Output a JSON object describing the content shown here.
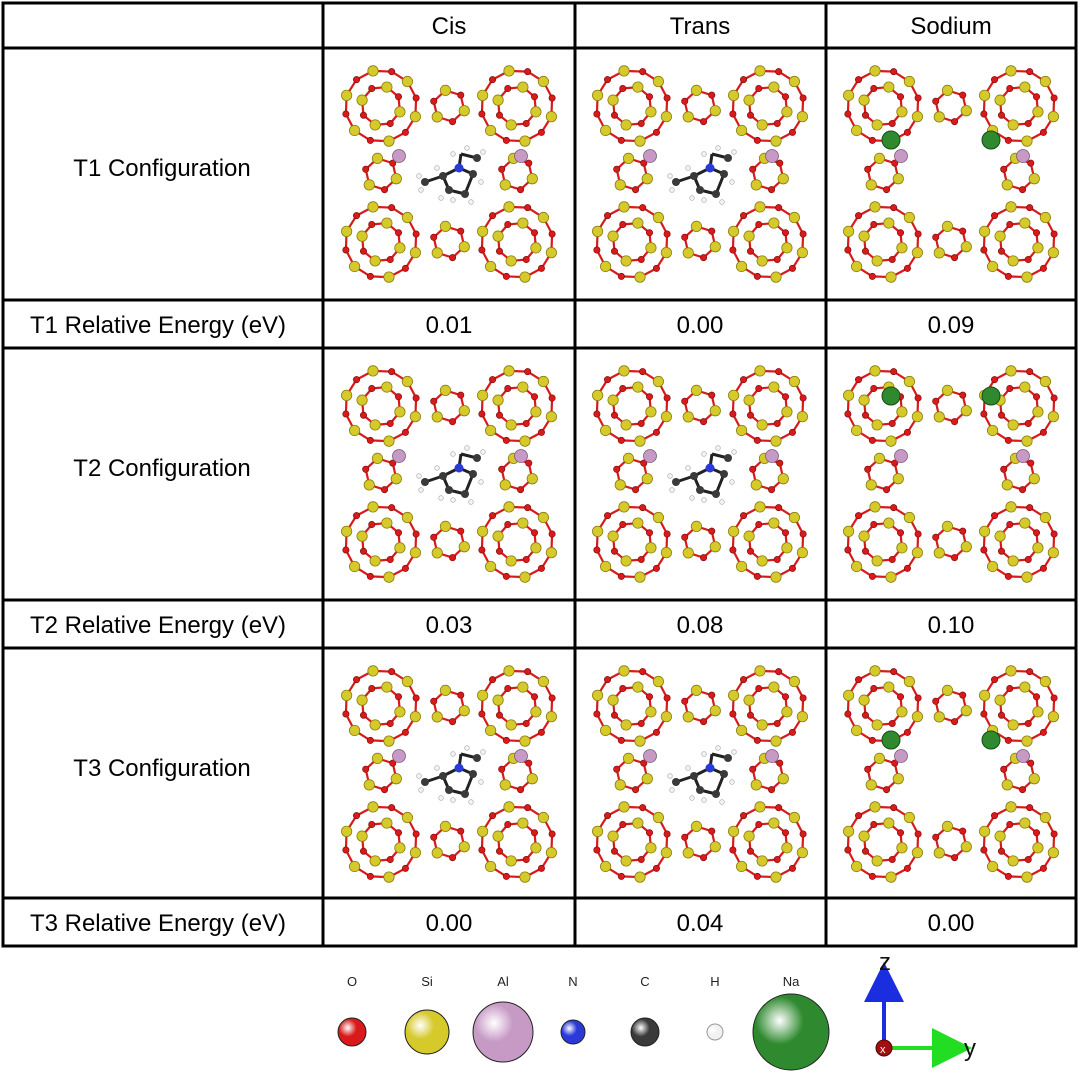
{
  "table": {
    "columns": [
      "Cis",
      "Trans",
      "Sodium"
    ],
    "rows": [
      {
        "config_label": "T1 Configuration",
        "energy_label": "T1 Relative Energy (eV)",
        "energies": [
          "0.01",
          "0.00",
          "0.09"
        ]
      },
      {
        "config_label": "T2 Configuration",
        "energy_label": "T2 Relative Energy (eV)",
        "energies": [
          "0.03",
          "0.08",
          "0.10"
        ]
      },
      {
        "config_label": "T3 Configuration",
        "energy_label": "T3 Relative Energy (eV)",
        "energies": [
          "0.00",
          "0.04",
          "0.00"
        ]
      }
    ]
  },
  "legend": {
    "elements": [
      {
        "symbol": "O",
        "color": "#d81a1a"
      },
      {
        "symbol": "Si",
        "color": "#d6c92a"
      },
      {
        "symbol": "Al",
        "color": "#c79ac6"
      },
      {
        "symbol": "N",
        "color": "#2a3ad8"
      },
      {
        "symbol": "C",
        "color": "#3a3a3a"
      },
      {
        "symbol": "H",
        "color": "#f2f2f2"
      },
      {
        "symbol": "Na",
        "color": "#2f8a2f"
      }
    ]
  },
  "axes": {
    "z_label": "z",
    "y_label": "y",
    "x_label": "x"
  },
  "colors": {
    "oxygen": "#d81a1a",
    "silicon": "#d6c92a",
    "aluminum": "#c79ac6",
    "nitrogen": "#2a3ad8",
    "carbon": "#3a3a3a",
    "hydrogen": "#f2f2f2",
    "sodium": "#2f8a2f"
  }
}
